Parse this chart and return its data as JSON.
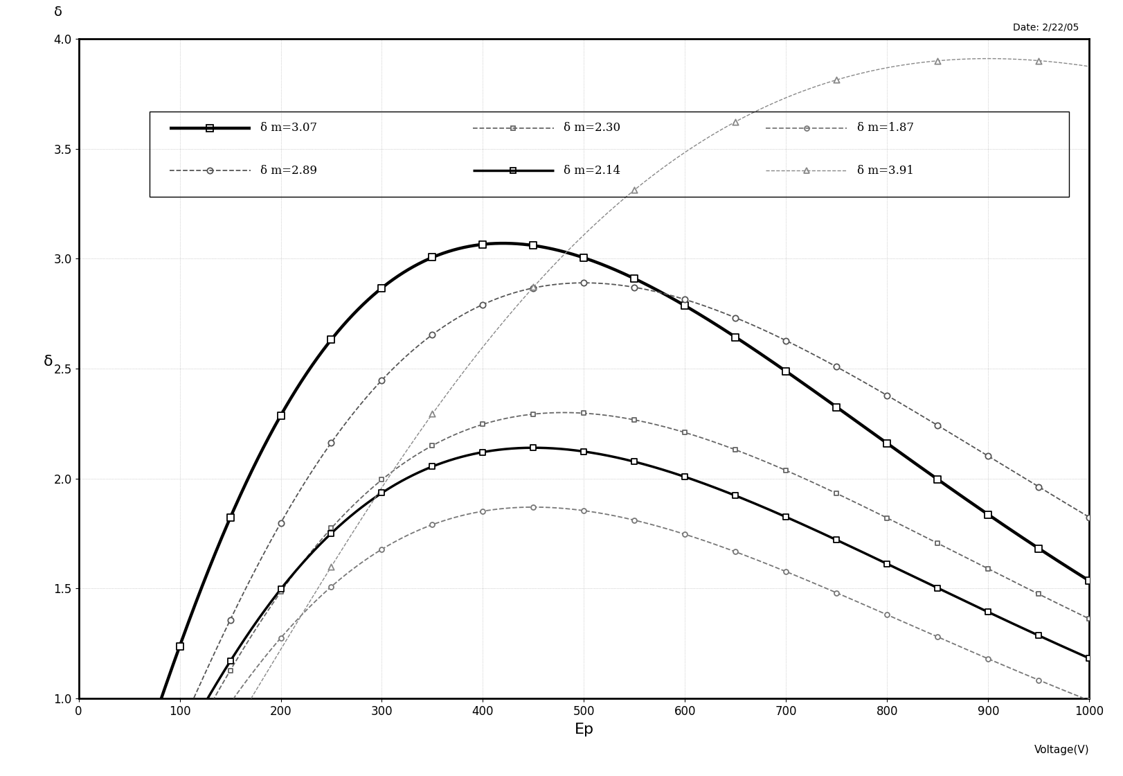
{
  "xlabel": "Ep",
  "ylabel": "δ",
  "date_label": "Date: 2/22/05",
  "delta_label": "δ",
  "xlim": [
    0,
    1000
  ],
  "ylim": [
    1.0,
    4.0
  ],
  "xticks": [
    0,
    100,
    200,
    300,
    400,
    500,
    600,
    700,
    800,
    900,
    1000
  ],
  "yticks": [
    1.0,
    1.5,
    2.0,
    2.5,
    3.0,
    3.5,
    4.0
  ],
  "xlabel2": "Voltage(V)",
  "background_color": "#ffffff",
  "grid_color": "#999999",
  "curves": [
    {
      "label": "δ m=3.07",
      "delta_m": 3.07,
      "Ep_m": 420,
      "n": 1.35,
      "color": "#000000",
      "linewidth": 3.2,
      "linestyle": "-",
      "marker": "s",
      "markersize": 7,
      "marker_interval": 50,
      "row": 0,
      "col": 0
    },
    {
      "label": "δ m=2.89",
      "delta_m": 2.89,
      "Ep_m": 500,
      "n": 1.5,
      "color": "#555555",
      "linewidth": 1.3,
      "linestyle": "--",
      "marker": "o",
      "markersize": 6,
      "marker_interval": 50,
      "row": 1,
      "col": 0
    },
    {
      "label": "δ m=2.30",
      "delta_m": 2.3,
      "Ep_m": 480,
      "n": 1.5,
      "color": "#666666",
      "linewidth": 1.3,
      "linestyle": "--",
      "marker": "s",
      "markersize": 5,
      "marker_interval": 50,
      "row": 0,
      "col": 1
    },
    {
      "label": "δ m=2.14",
      "delta_m": 2.14,
      "Ep_m": 450,
      "n": 1.4,
      "color": "#000000",
      "linewidth": 2.5,
      "linestyle": "-",
      "marker": "s",
      "markersize": 6,
      "marker_interval": 50,
      "row": 1,
      "col": 1
    },
    {
      "label": "δ m=1.87",
      "delta_m": 1.87,
      "Ep_m": 450,
      "n": 1.5,
      "color": "#777777",
      "linewidth": 1.3,
      "linestyle": "--",
      "marker": "o",
      "markersize": 5,
      "marker_interval": 50,
      "row": 0,
      "col": 2
    },
    {
      "label": "δ m=3.91",
      "delta_m": 3.91,
      "Ep_m": 900,
      "n": 1.6,
      "color": "#888888",
      "linewidth": 1.0,
      "linestyle": "--",
      "marker": "^",
      "markersize": 6,
      "marker_interval": 100,
      "row": 1,
      "col": 2
    }
  ]
}
